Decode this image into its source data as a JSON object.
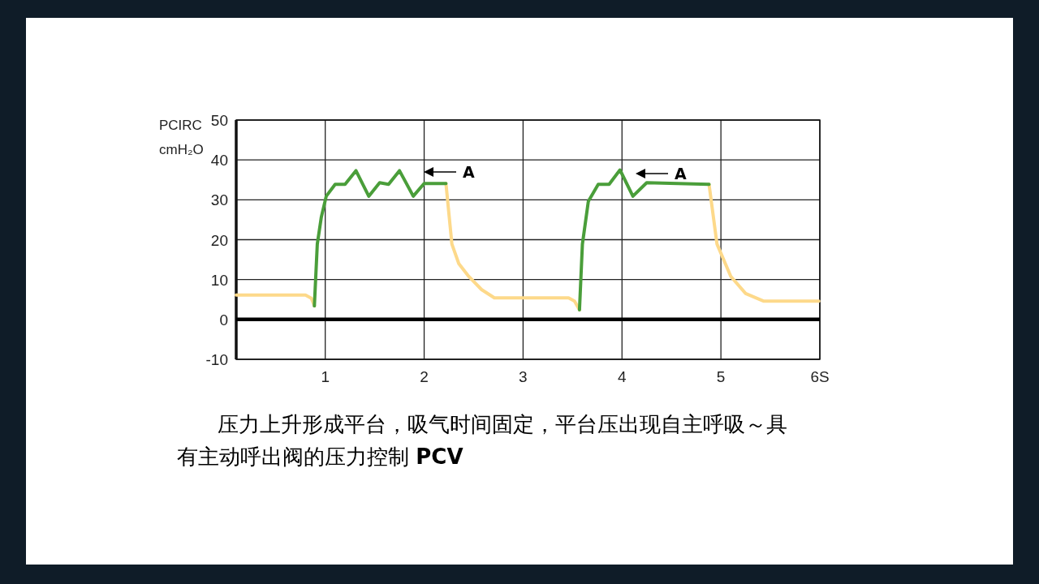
{
  "chart_data": {
    "type": "line",
    "ylabel": "PCIRC cmH₂O",
    "xlim": [
      0.1,
      6
    ],
    "ylim": [
      -10,
      50
    ],
    "xticks": [
      1,
      2,
      3,
      4,
      5,
      {
        "value": 6,
        "label": "6S"
      }
    ],
    "yticks": [
      -10,
      0,
      10,
      20,
      30,
      40,
      50
    ],
    "grid": true,
    "marker": "none",
    "line_style": "solid",
    "ref_lines": [
      {
        "axis": "y",
        "value": 0,
        "color": "#000000"
      }
    ],
    "series": [
      {
        "color": "#fdd98a",
        "x": [
          0.1,
          0.8,
          0.86,
          0.89,
          null,
          2.22,
          2.28,
          2.35,
          2.45,
          2.58,
          2.71,
          2.85,
          3.46,
          3.52,
          3.57,
          null,
          4.88,
          4.96,
          5.1,
          5.25,
          5.43,
          5.99
        ],
        "values": [
          6.1,
          6.1,
          5.3,
          3.4,
          null,
          34.1,
          18.9,
          14.0,
          10.8,
          7.5,
          5.4,
          5.4,
          5.4,
          4.6,
          2.4,
          null,
          33.9,
          18.9,
          10.8,
          6.5,
          4.6,
          4.6
        ]
      },
      {
        "color": "#4a9e3a",
        "x": [
          0.89,
          0.92,
          0.96,
          1.01,
          1.1,
          1.2,
          1.31,
          1.44,
          1.55,
          1.64,
          1.75,
          1.89,
          2.0,
          2.22,
          null,
          3.57,
          3.6,
          3.66,
          3.76,
          3.87,
          3.98,
          4.11,
          4.25,
          4.88
        ],
        "values": [
          3.4,
          18.9,
          25.6,
          30.9,
          33.9,
          33.9,
          37.3,
          30.9,
          34.3,
          33.9,
          37.3,
          30.9,
          34.1,
          34.1,
          null,
          2.4,
          18.9,
          29.6,
          33.9,
          33.9,
          37.5,
          30.9,
          34.3,
          33.9
        ]
      }
    ],
    "annotations": [
      "A",
      "A",
      "压力上升形成平台，吸气时间固定，平台压出现自主呼吸～具有主动呼出阀的压力控制  **PCV**"
    ]
  }
}
